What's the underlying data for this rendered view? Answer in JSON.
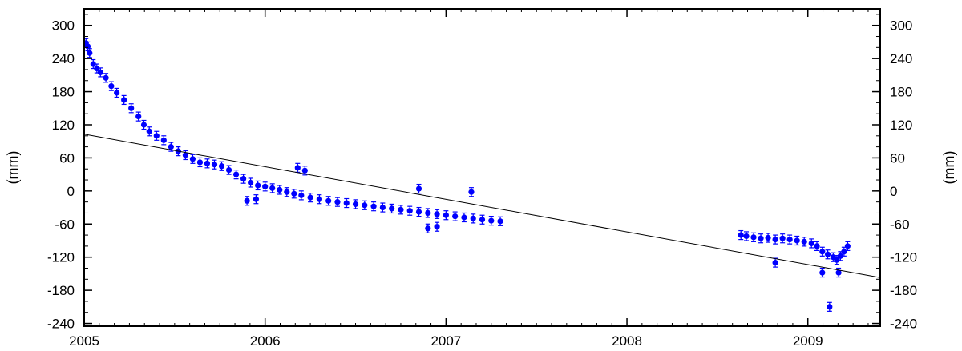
{
  "chart_data": {
    "type": "scatter",
    "title": "",
    "xlabel": "",
    "ylabel": "(mm)",
    "ylabel_right": "(mm)",
    "xlim": [
      2005.0,
      2009.4
    ],
    "ylim": [
      -245,
      330
    ],
    "x_ticks": [
      "2005",
      "2006",
      "2007",
      "2008",
      "2009"
    ],
    "x_tick_values": [
      2005,
      2006,
      2007,
      2008,
      2009
    ],
    "y_ticks": [
      "300",
      "240",
      "180",
      "120",
      "60",
      "0",
      "-60",
      "-120",
      "-180",
      "-240"
    ],
    "y_tick_values": [
      300,
      240,
      180,
      120,
      60,
      0,
      -60,
      -120,
      -180,
      -240
    ],
    "grid": false,
    "legend": "none",
    "colors": {
      "points": "#0000ff",
      "trend": "#000000",
      "axes": "#000000"
    },
    "series": [
      {
        "marker": "filled-circle-with-error-bars",
        "error_bar_halfwidth": 8,
        "x": [
          2005.01,
          2005.02,
          2005.03,
          2005.05,
          2005.07,
          2005.09,
          2005.12,
          2005.15,
          2005.18,
          2005.22,
          2005.26,
          2005.3,
          2005.33,
          2005.36,
          2005.4,
          2005.44,
          2005.48,
          2005.52,
          2005.56,
          2005.6,
          2005.64,
          2005.68,
          2005.72,
          2005.76,
          2005.8,
          2005.84,
          2005.88,
          2005.92,
          2005.96,
          2006.0,
          2006.04,
          2006.08,
          2006.12,
          2006.16,
          2006.2,
          2006.25,
          2006.3,
          2006.35,
          2006.4,
          2006.45,
          2006.5,
          2006.55,
          2006.6,
          2006.65,
          2006.7,
          2006.75,
          2006.8,
          2006.85,
          2006.9,
          2006.95,
          2007.0,
          2007.05,
          2007.1,
          2007.15,
          2007.2,
          2007.25,
          2007.3,
          2008.63,
          2008.66,
          2008.7,
          2008.74,
          2008.78,
          2008.82,
          2008.86,
          2008.9,
          2008.94,
          2008.98,
          2009.02,
          2009.05,
          2009.08,
          2009.11,
          2009.14,
          2009.16,
          2009.18,
          2009.2,
          2009.22
        ],
        "y": [
          268,
          262,
          250,
          230,
          222,
          215,
          205,
          190,
          178,
          165,
          150,
          135,
          120,
          108,
          100,
          92,
          80,
          72,
          65,
          58,
          52,
          50,
          48,
          45,
          38,
          30,
          22,
          15,
          10,
          8,
          5,
          2,
          -2,
          -5,
          -8,
          -12,
          -15,
          -18,
          -20,
          -22,
          -24,
          -26,
          -28,
          -30,
          -32,
          -34,
          -36,
          -38,
          -40,
          -42,
          -44,
          -46,
          -48,
          -50,
          -52,
          -54,
          -55,
          -80,
          -82,
          -84,
          -86,
          -85,
          -88,
          -86,
          -88,
          -90,
          -92,
          -95,
          -100,
          -110,
          -115,
          -120,
          -125,
          -118,
          -110,
          -100
        ],
        "outliers_x": [
          2005.9,
          2005.95,
          2006.18,
          2006.22,
          2006.85,
          2006.9,
          2006.95,
          2007.14,
          2008.82,
          2009.08,
          2009.12,
          2009.17
        ],
        "outliers_y": [
          -18,
          -15,
          42,
          37,
          4,
          -68,
          -65,
          -2,
          -130,
          -148,
          -210,
          -148
        ]
      }
    ],
    "trend_line": {
      "x": [
        2005.0,
        2009.4
      ],
      "y": [
        103,
        -157
      ]
    }
  }
}
